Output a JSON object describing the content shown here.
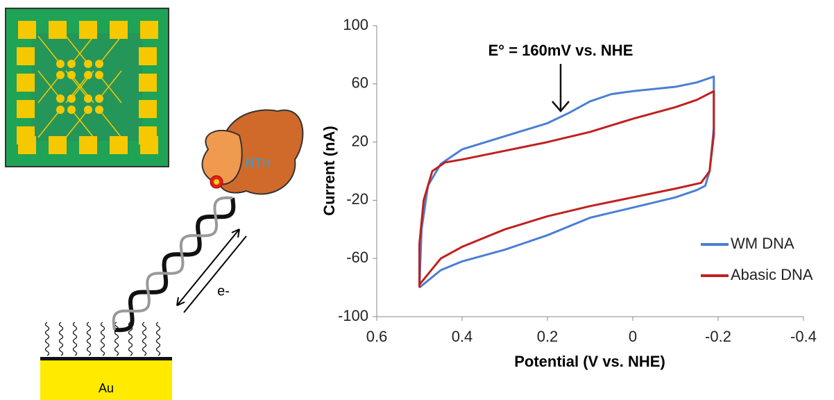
{
  "chart_data": {
    "type": "line",
    "annotation": "E° = 160mV vs. NHE",
    "xlabel": "Potential (V vs. NHE)",
    "ylabel": "Current (nA)",
    "xlim": [
      0.6,
      -0.4
    ],
    "xticks": [
      0.6,
      0.4,
      0.2,
      0,
      -0.2,
      -0.4
    ],
    "ylim": [
      -100,
      100
    ],
    "yticks": [
      -100,
      -60,
      -20,
      20,
      60,
      100
    ],
    "grid": false,
    "legend": "lower right",
    "series": [
      {
        "name": "WM DNA",
        "color": "#4a7fd4",
        "x": [
          0.5,
          0.495,
          0.48,
          0.45,
          0.4,
          0.3,
          0.2,
          0.15,
          0.1,
          0.05,
          0,
          -0.1,
          -0.15,
          -0.19,
          -0.19,
          -0.18,
          -0.17,
          -0.15,
          -0.1,
          0,
          0.1,
          0.2,
          0.3,
          0.4,
          0.45,
          0.5
        ],
        "values": [
          -80,
          -40,
          -10,
          5,
          15,
          24,
          33,
          40,
          48,
          53,
          55,
          58,
          61,
          65,
          30,
          0,
          -10,
          -13,
          -18,
          -25,
          -32,
          -44,
          -54,
          -62,
          -68,
          -80
        ]
      },
      {
        "name": "Abasic DNA",
        "color": "#c0201f",
        "x": [
          0.5,
          0.5,
          0.49,
          0.47,
          0.44,
          0.4,
          0.3,
          0.2,
          0.1,
          0,
          -0.1,
          -0.15,
          -0.19,
          -0.19,
          -0.18,
          -0.16,
          -0.1,
          0,
          0.1,
          0.2,
          0.3,
          0.4,
          0.45,
          0.5
        ],
        "values": [
          -80,
          -50,
          -20,
          0,
          6,
          8,
          14,
          20,
          27,
          36,
          44,
          49,
          55,
          25,
          0,
          -8,
          -12,
          -18,
          -24,
          -31,
          -40,
          -52,
          -60,
          -78
        ]
      }
    ]
  },
  "illustration": {
    "protein": "NTH",
    "electron": "e-",
    "electrode": "Au"
  }
}
